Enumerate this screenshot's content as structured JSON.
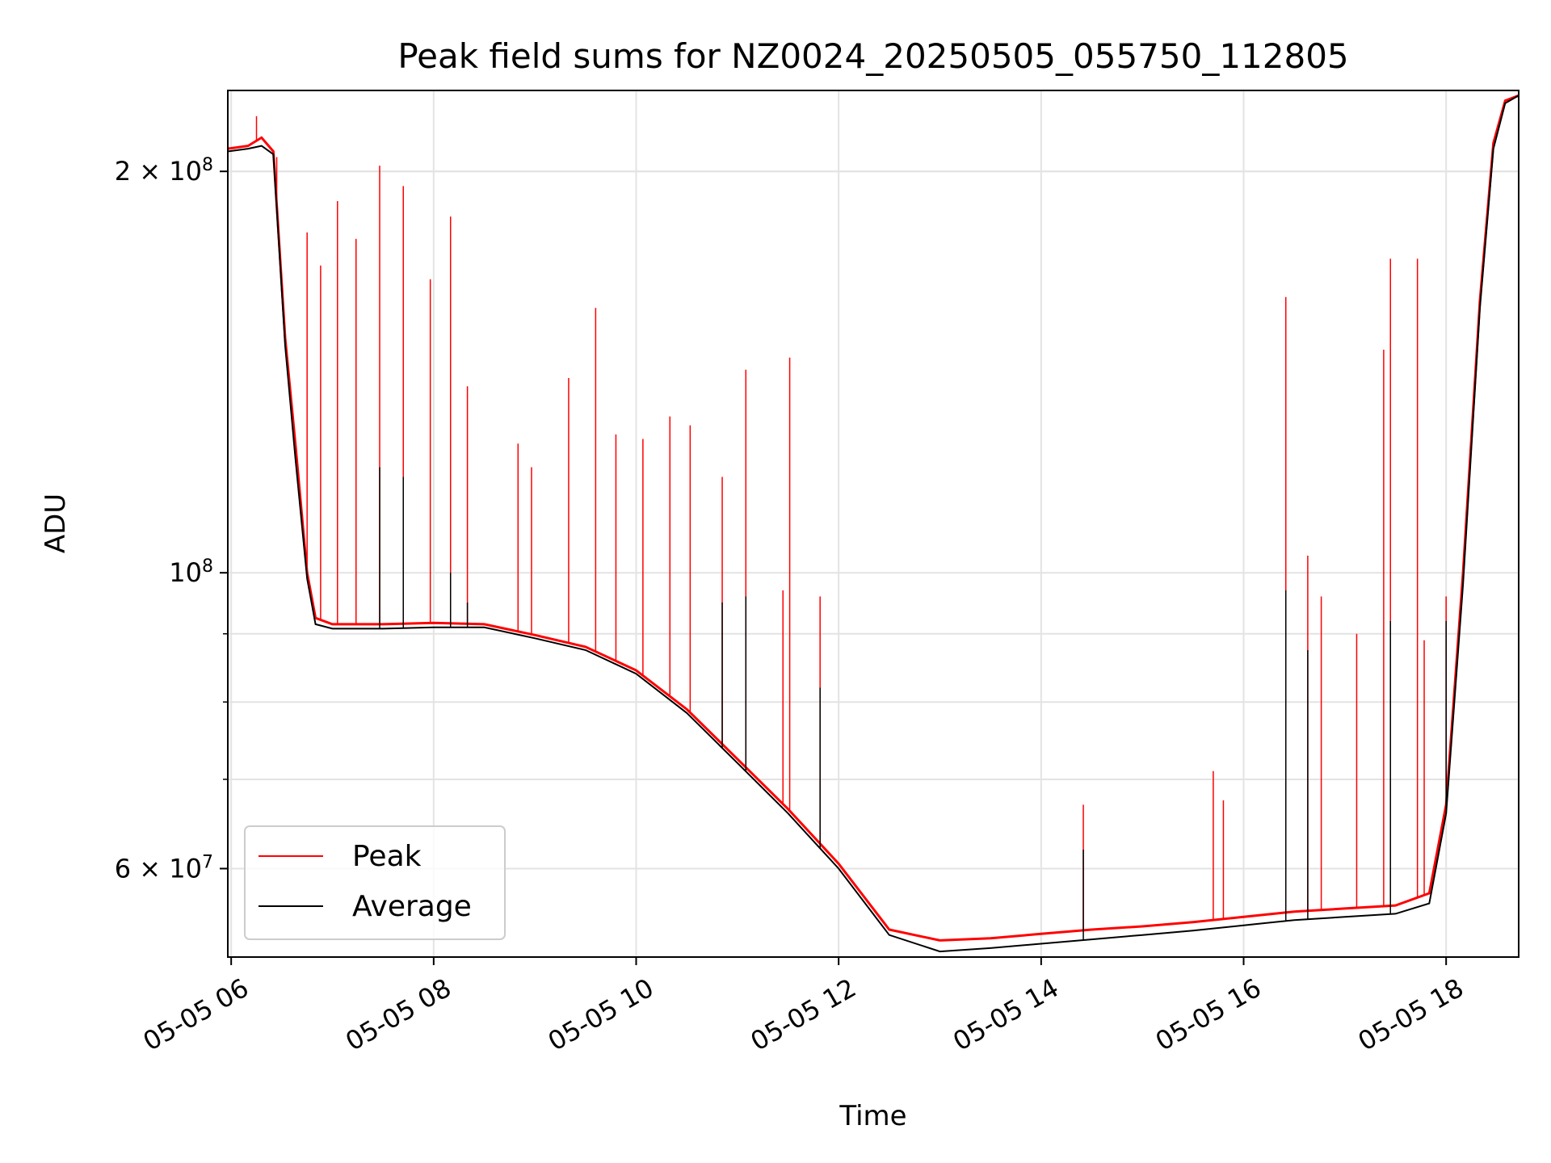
{
  "chart_data": {
    "type": "line",
    "title": "Peak field sums for NZ0024_20250505_055750_112805",
    "xlabel": "Time",
    "ylabel": "ADU",
    "yscale": "log",
    "grid": true,
    "legend_position": "lower-left",
    "x_range": [
      "05-05 05:58",
      "05-05 18:43"
    ],
    "ylim": [
      51500000,
      230000000
    ],
    "x_tick_labels": [
      "05-05 06",
      "05-05 08",
      "05-05 10",
      "05-05 12",
      "05-05 14",
      "05-05 16",
      "05-05 18"
    ],
    "y_tick_labels": [
      "2 × 10^8",
      "10^8",
      "6 × 10^7"
    ],
    "series": [
      {
        "name": "Peak",
        "color": "#ff0000",
        "points": [
          [
            "05-05 05:58",
            208000000
          ],
          [
            "05-05 06:10",
            209000000
          ],
          [
            "05-05 06:18",
            212000000
          ],
          [
            "05-05 06:25",
            207000000
          ],
          [
            "05-05 06:32",
            150000000
          ],
          [
            "05-05 06:38",
            125000000
          ],
          [
            "05-05 06:45",
            100000000
          ],
          [
            "05-05 06:50",
            92500000
          ],
          [
            "05-05 07:00",
            91500000
          ],
          [
            "05-05 07:30",
            91500000
          ],
          [
            "05-05 08:00",
            91700000
          ],
          [
            "05-05 08:30",
            91500000
          ],
          [
            "05-05 09:00",
            89800000
          ],
          [
            "05-05 09:30",
            88000000
          ],
          [
            "05-05 10:00",
            84500000
          ],
          [
            "05-05 10:30",
            79000000
          ],
          [
            "05-05 11:00",
            72500000
          ],
          [
            "05-05 11:30",
            66500000
          ],
          [
            "05-05 12:00",
            60500000
          ],
          [
            "05-05 12:30",
            54000000
          ],
          [
            "05-05 13:00",
            53000000
          ],
          [
            "05-05 13:30",
            53200000
          ],
          [
            "05-05 14:00",
            53600000
          ],
          [
            "05-05 14:30",
            54000000
          ],
          [
            "05-05 15:00",
            54300000
          ],
          [
            "05-05 15:30",
            54700000
          ],
          [
            "05-05 16:00",
            55200000
          ],
          [
            "05-05 16:30",
            55700000
          ],
          [
            "05-05 17:00",
            56000000
          ],
          [
            "05-05 17:30",
            56300000
          ],
          [
            "05-05 17:50",
            57500000
          ],
          [
            "05-05 18:00",
            67000000
          ],
          [
            "05-05 18:10",
            100000000
          ],
          [
            "05-05 18:20",
            160000000
          ],
          [
            "05-05 18:28",
            210000000
          ],
          [
            "05-05 18:35",
            226000000
          ],
          [
            "05-05 18:43",
            228000000
          ]
        ],
        "spikes": [
          [
            "05-05 06:15",
            220000000
          ],
          [
            "05-05 06:27",
            205000000
          ],
          [
            "05-05 06:45",
            180000000
          ],
          [
            "05-05 06:53",
            170000000
          ],
          [
            "05-05 07:03",
            190000000
          ],
          [
            "05-05 07:14",
            178000000
          ],
          [
            "05-05 07:28",
            202000000
          ],
          [
            "05-05 07:42",
            195000000
          ],
          [
            "05-05 07:58",
            166000000
          ],
          [
            "05-05 08:10",
            185000000
          ],
          [
            "05-05 08:20",
            138000000
          ],
          [
            "05-05 08:50",
            125000000
          ],
          [
            "05-05 08:58",
            120000000
          ],
          [
            "05-05 09:20",
            140000000
          ],
          [
            "05-05 09:36",
            158000000
          ],
          [
            "05-05 09:48",
            127000000
          ],
          [
            "05-05 10:04",
            126000000
          ],
          [
            "05-05 10:20",
            131000000
          ],
          [
            "05-05 10:32",
            129000000
          ],
          [
            "05-05 10:51",
            118000000
          ],
          [
            "05-05 11:05",
            142000000
          ],
          [
            "05-05 11:27",
            97000000
          ],
          [
            "05-05 11:31",
            145000000
          ],
          [
            "05-05 11:49",
            96000000
          ],
          [
            "05-05 14:25",
            67000000
          ],
          [
            "05-05 15:42",
            71000000
          ],
          [
            "05-05 15:48",
            67500000
          ],
          [
            "05-05 16:25",
            161000000
          ],
          [
            "05-05 16:38",
            103000000
          ],
          [
            "05-05 16:46",
            96000000
          ],
          [
            "05-05 17:07",
            90000000
          ],
          [
            "05-05 17:23",
            147000000
          ],
          [
            "05-05 17:27",
            172000000
          ],
          [
            "05-05 17:43",
            172000000
          ],
          [
            "05-05 17:47",
            89000000
          ],
          [
            "05-05 18:00",
            96000000
          ]
        ]
      },
      {
        "name": "Average",
        "color": "#000000",
        "points": [
          [
            "05-05 05:58",
            207000000
          ],
          [
            "05-05 06:10",
            208000000
          ],
          [
            "05-05 06:18",
            209000000
          ],
          [
            "05-05 06:25",
            206000000
          ],
          [
            "05-05 06:32",
            148000000
          ],
          [
            "05-05 06:38",
            122000000
          ],
          [
            "05-05 06:45",
            99000000
          ],
          [
            "05-05 06:50",
            91500000
          ],
          [
            "05-05 07:00",
            90800000
          ],
          [
            "05-05 07:30",
            90800000
          ],
          [
            "05-05 08:00",
            91000000
          ],
          [
            "05-05 08:30",
            91000000
          ],
          [
            "05-05 09:00",
            89300000
          ],
          [
            "05-05 09:30",
            87500000
          ],
          [
            "05-05 10:00",
            84000000
          ],
          [
            "05-05 10:30",
            78500000
          ],
          [
            "05-05 11:00",
            72000000
          ],
          [
            "05-05 11:30",
            66000000
          ],
          [
            "05-05 12:00",
            60000000
          ],
          [
            "05-05 12:30",
            53500000
          ],
          [
            "05-05 13:00",
            52000000
          ],
          [
            "05-05 13:30",
            52300000
          ],
          [
            "05-05 14:00",
            52700000
          ],
          [
            "05-05 14:30",
            53100000
          ],
          [
            "05-05 15:00",
            53500000
          ],
          [
            "05-05 15:30",
            53900000
          ],
          [
            "05-05 16:00",
            54400000
          ],
          [
            "05-05 16:30",
            54900000
          ],
          [
            "05-05 17:00",
            55200000
          ],
          [
            "05-05 17:30",
            55500000
          ],
          [
            "05-05 17:50",
            56500000
          ],
          [
            "05-05 18:00",
            66000000
          ],
          [
            "05-05 18:10",
            98000000
          ],
          [
            "05-05 18:20",
            158000000
          ],
          [
            "05-05 18:28",
            208000000
          ],
          [
            "05-05 18:35",
            225000000
          ],
          [
            "05-05 18:43",
            228000000
          ]
        ],
        "spikes": [
          [
            "05-05 07:28",
            120000000
          ],
          [
            "05-05 07:42",
            118000000
          ],
          [
            "05-05 08:10",
            100000000
          ],
          [
            "05-05 08:20",
            95000000
          ],
          [
            "05-05 10:51",
            95000000
          ],
          [
            "05-05 11:05",
            96000000
          ],
          [
            "05-05 11:49",
            82000000
          ],
          [
            "05-05 14:25",
            62000000
          ],
          [
            "05-05 16:25",
            97000000
          ],
          [
            "05-05 16:38",
            87500000
          ],
          [
            "05-05 17:27",
            92000000
          ],
          [
            "05-05 18:00",
            92000000
          ]
        ]
      }
    ]
  }
}
